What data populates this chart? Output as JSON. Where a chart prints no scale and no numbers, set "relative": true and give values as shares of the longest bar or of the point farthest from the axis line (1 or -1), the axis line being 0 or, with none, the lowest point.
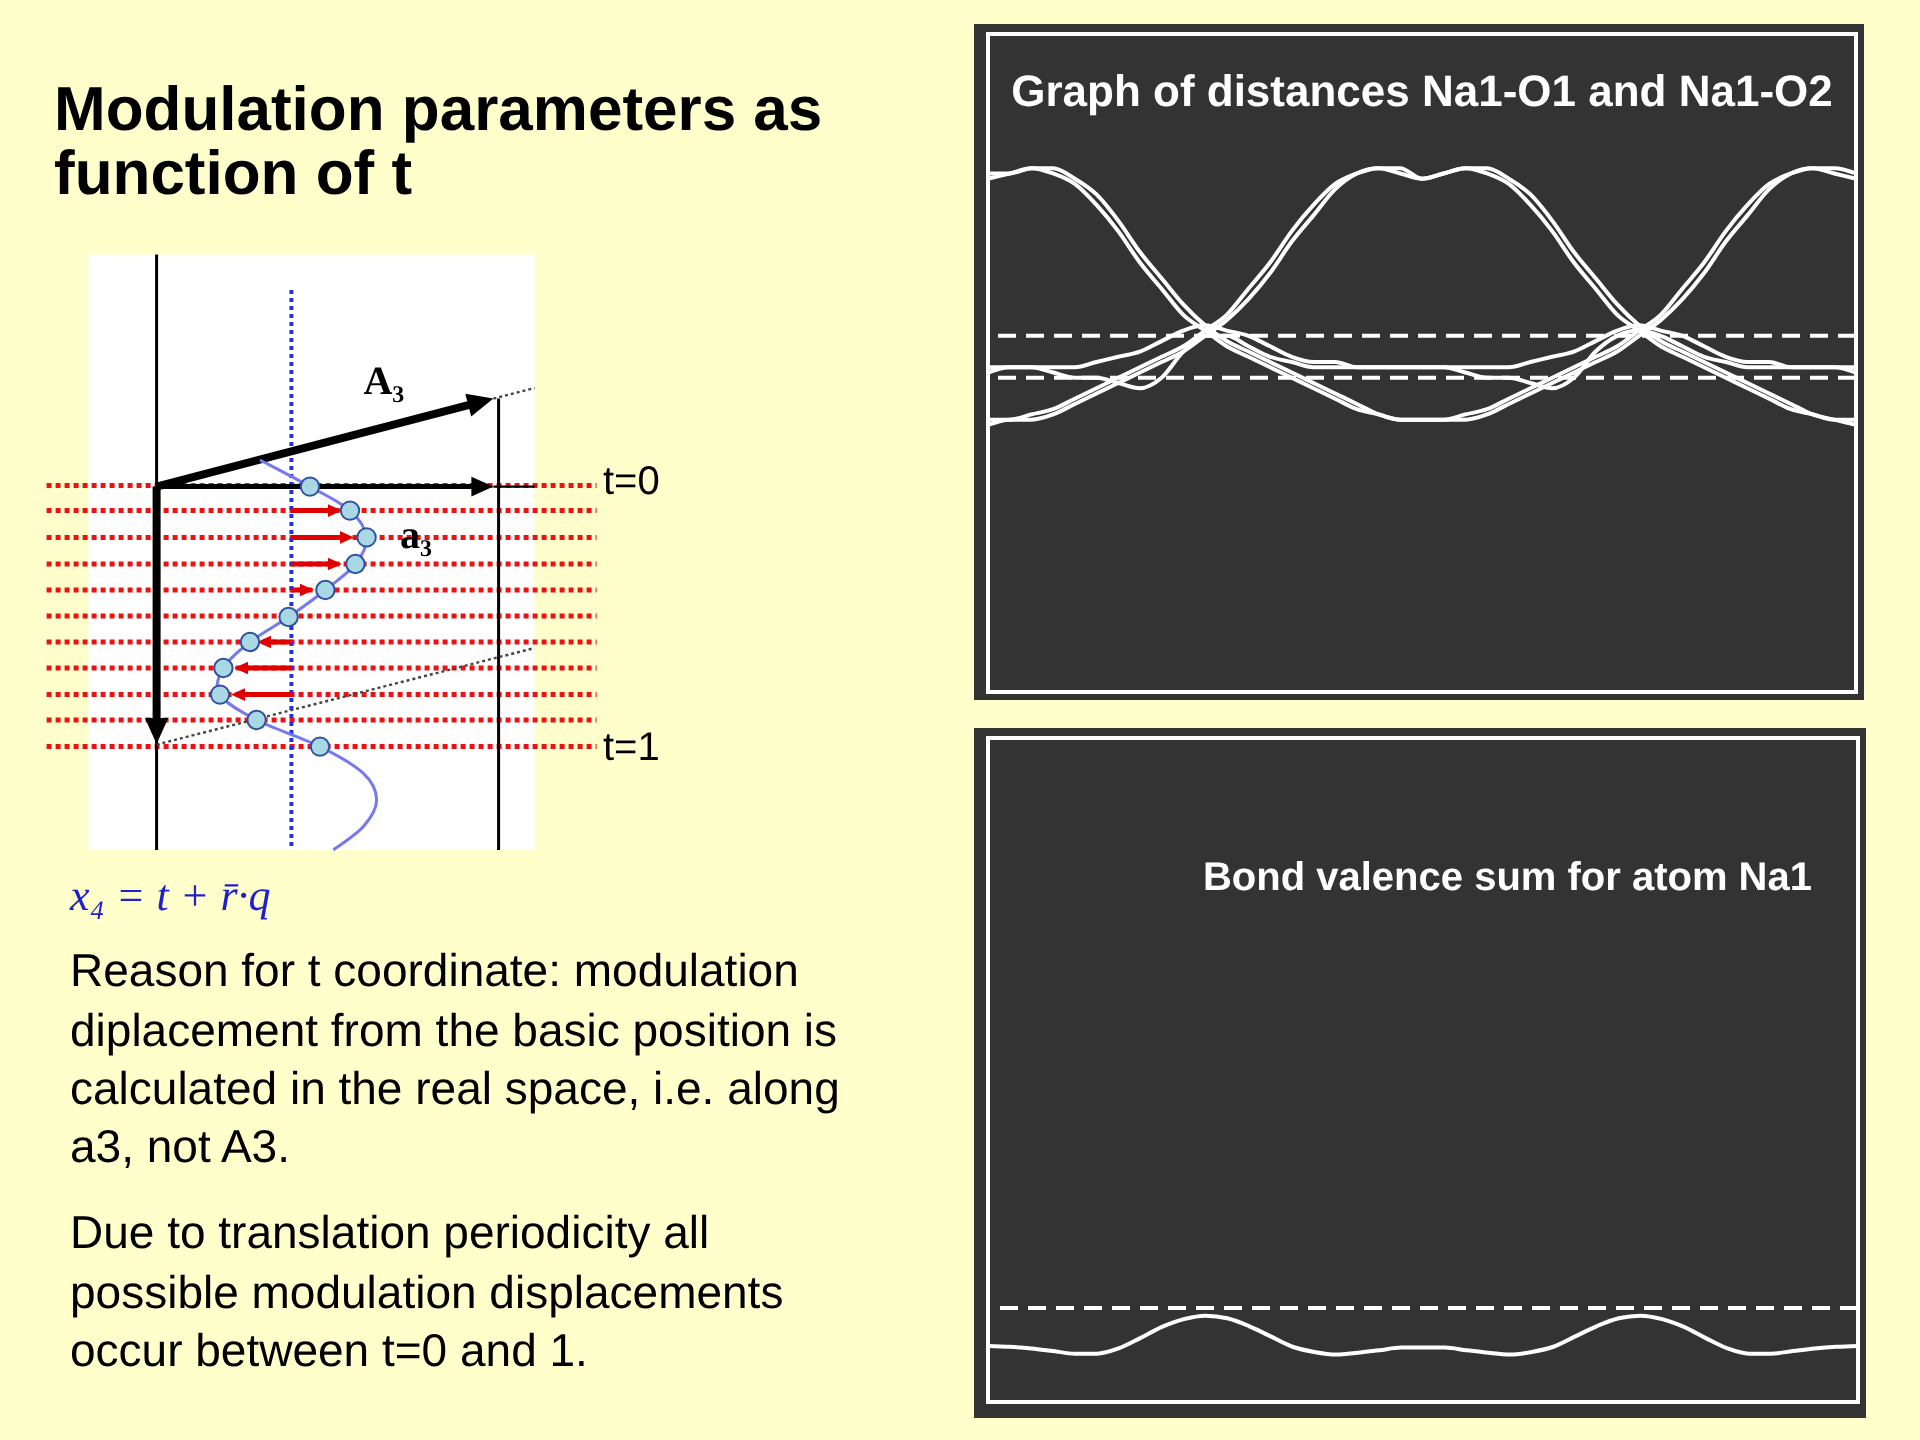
{
  "chart_data": [
    {
      "type": "other",
      "title": "Modulation parameters as function of t",
      "annotations": [
        "A₃",
        "a₃",
        "t=0",
        "t=1",
        "x₄ = t + r̄·q",
        "Reason for t coordinate: modulation diplacement from the basic position is calculated in the real space, i.e. along a3, not A3.",
        "Due to translation periodicity all possible modulation displacements occur between t=0 and 1."
      ]
    },
    {
      "type": "line",
      "title": "Graph of distances Na1-O1 and Na1-O2",
      "relative": true,
      "categories": [
        null,
        null,
        null,
        null,
        null,
        null,
        null,
        null,
        null,
        null,
        null,
        null,
        null,
        null,
        null,
        null,
        null,
        null,
        null,
        null,
        null,
        null,
        null,
        null,
        null,
        null,
        null,
        null,
        null,
        null,
        null,
        null,
        null,
        null,
        null,
        null,
        null,
        null,
        null,
        null,
        null
      ],
      "series": [
        {
          "color": "#ffffff",
          "values": [
            0.98,
            0.99,
            1,
            0.99,
            0.97,
            0.93,
            0.88,
            0.82,
            0.77,
            0.72,
            0.69,
            0.66,
            0.64,
            0.62,
            0.6,
            0.58,
            0.56,
            0.54,
            0.53,
            0.52,
            0.52,
            0.52,
            0.53,
            0.54,
            0.56,
            0.58,
            0.6,
            0.62,
            0.64,
            0.66,
            0.69,
            0.72,
            0.77,
            0.82,
            0.88,
            0.93,
            0.97,
            0.99,
            1,
            0.99,
            0.98
          ]
        },
        {
          "color": "#ffffff",
          "values": [
            0.99,
            0.99,
            1,
            1,
            0.98,
            0.95,
            0.9,
            0.84,
            0.79,
            0.74,
            0.7,
            0.67,
            0.65,
            0.63,
            0.61,
            0.59,
            0.57,
            0.55,
            0.53,
            0.52,
            0.52,
            0.52,
            0.52,
            0.53,
            0.55,
            0.57,
            0.59,
            0.61,
            0.63,
            0.65,
            0.68,
            0.71,
            0.75,
            0.8,
            0.86,
            0.91,
            0.96,
            0.99,
            1,
            1,
            0.99
          ]
        },
        {
          "color": "#ffffff",
          "values": [
            0.52,
            0.52,
            0.53,
            0.54,
            0.56,
            0.58,
            0.6,
            0.62,
            0.64,
            0.66,
            0.69,
            0.72,
            0.77,
            0.82,
            0.88,
            0.93,
            0.97,
            0.99,
            1,
            0.99,
            0.98,
            0.99,
            1,
            0.99,
            0.97,
            0.93,
            0.88,
            0.82,
            0.77,
            0.72,
            0.69,
            0.66,
            0.64,
            0.62,
            0.6,
            0.58,
            0.56,
            0.54,
            0.53,
            0.52,
            0.52
          ]
        },
        {
          "color": "#ffffff",
          "values": [
            0.51,
            0.52,
            0.52,
            0.53,
            0.55,
            0.57,
            0.59,
            0.61,
            0.63,
            0.65,
            0.68,
            0.71,
            0.75,
            0.8,
            0.86,
            0.91,
            0.96,
            0.99,
            1,
            1,
            0.98,
            0.99,
            1,
            1,
            0.98,
            0.95,
            0.9,
            0.84,
            0.79,
            0.74,
            0.7,
            0.67,
            0.65,
            0.63,
            0.61,
            0.59,
            0.57,
            0.55,
            0.53,
            0.52,
            0.51
          ]
        },
        {
          "color": "#ffffff",
          "values": [
            0.62,
            0.62,
            0.62,
            0.62,
            0.62,
            0.63,
            0.64,
            0.65,
            0.67,
            0.69,
            0.7,
            0.69,
            0.68,
            0.66,
            0.64,
            0.63,
            0.63,
            0.62,
            0.62,
            0.62,
            0.62,
            0.62,
            0.62,
            0.62,
            0.62,
            0.63,
            0.64,
            0.65,
            0.67,
            0.69,
            0.7,
            0.69,
            0.68,
            0.66,
            0.64,
            0.63,
            0.63,
            0.62,
            0.62,
            0.62,
            0.62
          ]
        },
        {
          "color": "#ffffff",
          "values": [
            0.61,
            0.62,
            0.62,
            0.61,
            0.6,
            0.6,
            0.59,
            0.58,
            0.6,
            0.65,
            0.68,
            0.68,
            0.66,
            0.64,
            0.63,
            0.62,
            0.62,
            0.62,
            0.62,
            0.62,
            0.62,
            0.62,
            0.61,
            0.6,
            0.6,
            0.59,
            0.58,
            0.6,
            0.65,
            0.68,
            0.69,
            0.68,
            0.66,
            0.64,
            0.63,
            0.62,
            0.62,
            0.62,
            0.62,
            0.62,
            0.61
          ]
        }
      ],
      "ref_lines": [
        {
          "axis": "y",
          "value": 0.68,
          "line_style": "dashed",
          "color": "#ffffff"
        },
        {
          "axis": "y",
          "value": 0.6,
          "line_style": "dashed",
          "color": "#ffffff"
        }
      ]
    },
    {
      "type": "line",
      "title": "Bond valence sum for atom Na1",
      "relative": true,
      "categories": [
        null,
        null,
        null,
        null,
        null,
        null,
        null,
        null,
        null,
        null,
        null,
        null,
        null,
        null,
        null,
        null,
        null,
        null,
        null,
        null,
        null,
        null,
        null,
        null,
        null,
        null,
        null,
        null,
        null,
        null,
        null,
        null,
        null,
        null,
        null,
        null,
        null,
        null,
        null,
        null,
        null
      ],
      "series": [
        {
          "color": "#ffffff",
          "values": [
            0.65,
            0.64,
            0.62,
            0.59,
            0.56,
            0.56,
            0.62,
            0.74,
            0.87,
            0.96,
            1,
            0.97,
            0.88,
            0.76,
            0.64,
            0.58,
            0.55,
            0.57,
            0.6,
            0.63,
            0.63,
            0.63,
            0.6,
            0.57,
            0.55,
            0.58,
            0.64,
            0.76,
            0.88,
            0.97,
            1,
            0.96,
            0.87,
            0.74,
            0.62,
            0.56,
            0.56,
            0.59,
            0.62,
            0.64,
            0.65
          ]
        }
      ],
      "ref_lines": [
        {
          "axis": "y",
          "value": 1.09,
          "line_style": "dashed",
          "color": "#ffffff"
        }
      ]
    }
  ]
}
